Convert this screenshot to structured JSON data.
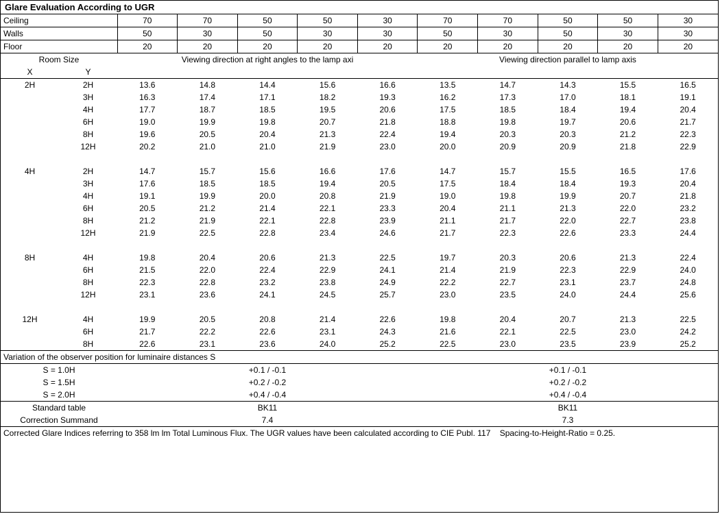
{
  "title": "Glare Evaluation According to UGR",
  "reflectances": {
    "labels": [
      "Ceiling",
      "Walls",
      "Floor"
    ],
    "cols_perp": [
      [
        70,
        70,
        50,
        50,
        30
      ],
      [
        50,
        30,
        50,
        30,
        30
      ],
      [
        20,
        20,
        20,
        20,
        20
      ]
    ],
    "cols_para": [
      [
        70,
        70,
        50,
        50,
        30
      ],
      [
        50,
        30,
        50,
        30,
        30
      ],
      [
        20,
        20,
        20,
        20,
        20
      ]
    ]
  },
  "room_size_label": "Room Size",
  "x_label": "X",
  "y_label": "Y",
  "dir_perp": "Viewing direction at right angles to the lamp axi",
  "dir_para": "Viewing direction parallel to lamp axis",
  "groups": [
    {
      "x": "2H",
      "rows": [
        {
          "y": "2H",
          "perp": [
            13.6,
            14.8,
            14.4,
            15.6,
            16.6
          ],
          "para": [
            13.5,
            14.7,
            14.3,
            15.5,
            16.5
          ]
        },
        {
          "y": "3H",
          "perp": [
            16.3,
            17.4,
            17.1,
            18.2,
            19.3
          ],
          "para": [
            16.2,
            17.3,
            17.0,
            18.1,
            19.1
          ]
        },
        {
          "y": "4H",
          "perp": [
            17.7,
            18.7,
            18.5,
            19.5,
            20.6
          ],
          "para": [
            17.5,
            18.5,
            18.4,
            19.4,
            20.4
          ]
        },
        {
          "y": "6H",
          "perp": [
            19.0,
            19.9,
            19.8,
            20.7,
            21.8
          ],
          "para": [
            18.8,
            19.8,
            19.7,
            20.6,
            21.7
          ]
        },
        {
          "y": "8H",
          "perp": [
            19.6,
            20.5,
            20.4,
            21.3,
            22.4
          ],
          "para": [
            19.4,
            20.3,
            20.3,
            21.2,
            22.3
          ]
        },
        {
          "y": "12H",
          "perp": [
            20.2,
            21.0,
            21.0,
            21.9,
            23.0
          ],
          "para": [
            20.0,
            20.9,
            20.9,
            21.8,
            22.9
          ]
        }
      ]
    },
    {
      "x": "4H",
      "rows": [
        {
          "y": "2H",
          "perp": [
            14.7,
            15.7,
            15.6,
            16.6,
            17.6
          ],
          "para": [
            14.7,
            15.7,
            15.5,
            16.5,
            17.6
          ]
        },
        {
          "y": "3H",
          "perp": [
            17.6,
            18.5,
            18.5,
            19.4,
            20.5
          ],
          "para": [
            17.5,
            18.4,
            18.4,
            19.3,
            20.4
          ]
        },
        {
          "y": "4H",
          "perp": [
            19.1,
            19.9,
            20.0,
            20.8,
            21.9
          ],
          "para": [
            19.0,
            19.8,
            19.9,
            20.7,
            21.8
          ]
        },
        {
          "y": "6H",
          "perp": [
            20.5,
            21.2,
            21.4,
            22.1,
            23.3
          ],
          "para": [
            20.4,
            21.1,
            21.3,
            22.0,
            23.2
          ]
        },
        {
          "y": "8H",
          "perp": [
            21.2,
            21.9,
            22.1,
            22.8,
            23.9
          ],
          "para": [
            21.1,
            21.7,
            22.0,
            22.7,
            23.8
          ]
        },
        {
          "y": "12H",
          "perp": [
            21.9,
            22.5,
            22.8,
            23.4,
            24.6
          ],
          "para": [
            21.7,
            22.3,
            22.6,
            23.3,
            24.4
          ]
        }
      ]
    },
    {
      "x": "8H",
      "rows": [
        {
          "y": "4H",
          "perp": [
            19.8,
            20.4,
            20.6,
            21.3,
            22.5
          ],
          "para": [
            19.7,
            20.3,
            20.6,
            21.3,
            22.4
          ]
        },
        {
          "y": "6H",
          "perp": [
            21.5,
            22.0,
            22.4,
            22.9,
            24.1
          ],
          "para": [
            21.4,
            21.9,
            22.3,
            22.9,
            24.0
          ]
        },
        {
          "y": "8H",
          "perp": [
            22.3,
            22.8,
            23.2,
            23.8,
            24.9
          ],
          "para": [
            22.2,
            22.7,
            23.1,
            23.7,
            24.8
          ]
        },
        {
          "y": "12H",
          "perp": [
            23.1,
            23.6,
            24.1,
            24.5,
            25.7
          ],
          "para": [
            23.0,
            23.5,
            24.0,
            24.4,
            25.6
          ]
        }
      ]
    },
    {
      "x": "12H",
      "rows": [
        {
          "y": "4H",
          "perp": [
            19.9,
            20.5,
            20.8,
            21.4,
            22.6
          ],
          "para": [
            19.8,
            20.4,
            20.7,
            21.3,
            22.5
          ]
        },
        {
          "y": "6H",
          "perp": [
            21.7,
            22.2,
            22.6,
            23.1,
            24.3
          ],
          "para": [
            21.6,
            22.1,
            22.5,
            23.0,
            24.2
          ]
        },
        {
          "y": "8H",
          "perp": [
            22.6,
            23.1,
            23.6,
            24.0,
            25.2
          ],
          "para": [
            22.5,
            23.0,
            23.5,
            23.9,
            25.2
          ]
        }
      ]
    }
  ],
  "variation_header": "Variation of the observer position for luminaire distances S",
  "variation_rows": [
    {
      "s": "S = 1.0H",
      "perp": "+0.1 / -0.1",
      "para": "+0.1 / -0.1"
    },
    {
      "s": "S = 1.5H",
      "perp": "+0.2 / -0.2",
      "para": "+0.2 / -0.2"
    },
    {
      "s": "S = 2.0H",
      "perp": "+0.4 / -0.4",
      "para": "+0.4 / -0.4"
    }
  ],
  "std_table_label": "Standard table",
  "correction_label": "Correction Summand",
  "std_table_perp": "BK11",
  "std_table_para": "BK11",
  "correction_perp": "7.4",
  "correction_para": "7.3",
  "footnote": "Corrected Glare Indices referring to 358 lm lm Total Luminous Flux. The UGR values have been calculated according to CIE Publ. 117    Spacing-to-Height-Ratio = 0.25."
}
